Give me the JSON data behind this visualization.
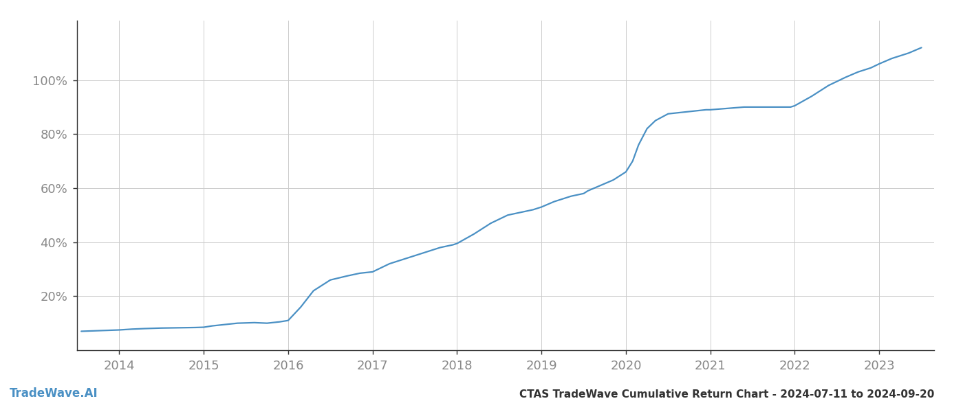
{
  "title": "CTAS TradeWave Cumulative Return Chart - 2024-07-11 to 2024-09-20",
  "watermark": "TradeWave.AI",
  "line_color": "#4a90c4",
  "background_color": "#ffffff",
  "grid_color": "#cccccc",
  "x_values": [
    2013.55,
    2014.0,
    2014.15,
    2014.3,
    2014.5,
    2014.7,
    2014.9,
    2015.0,
    2015.1,
    2015.25,
    2015.4,
    2015.6,
    2015.75,
    2015.9,
    2016.0,
    2016.15,
    2016.3,
    2016.5,
    2016.7,
    2016.85,
    2017.0,
    2017.2,
    2017.4,
    2017.6,
    2017.8,
    2017.95,
    2018.0,
    2018.2,
    2018.4,
    2018.6,
    2018.75,
    2018.9,
    2019.0,
    2019.15,
    2019.35,
    2019.5,
    2019.55,
    2019.7,
    2019.85,
    2020.0,
    2020.08,
    2020.15,
    2020.25,
    2020.35,
    2020.5,
    2020.65,
    2020.8,
    2020.95,
    2021.0,
    2021.2,
    2021.4,
    2021.6,
    2021.8,
    2021.95,
    2022.0,
    2022.2,
    2022.4,
    2022.6,
    2022.75,
    2022.9,
    2023.0,
    2023.15,
    2023.35,
    2023.5
  ],
  "y_values": [
    7,
    7.5,
    7.8,
    8,
    8.2,
    8.3,
    8.4,
    8.5,
    9,
    9.5,
    10,
    10.2,
    10,
    10.5,
    11,
    16,
    22,
    26,
    27.5,
    28.5,
    29,
    32,
    34,
    36,
    38,
    39,
    39.5,
    43,
    47,
    50,
    51,
    52,
    53,
    55,
    57,
    58,
    59,
    61,
    63,
    66,
    70,
    76,
    82,
    85,
    87.5,
    88,
    88.5,
    89,
    89,
    89.5,
    90,
    90,
    90,
    90,
    90.5,
    94,
    98,
    101,
    103,
    104.5,
    106,
    108,
    110,
    112
  ],
  "yticks": [
    20,
    40,
    60,
    80,
    100
  ],
  "ytick_labels": [
    "20%",
    "40%",
    "60%",
    "80%",
    "100%"
  ],
  "xticks": [
    2014,
    2015,
    2016,
    2017,
    2018,
    2019,
    2020,
    2021,
    2022,
    2023
  ],
  "xlim": [
    2013.5,
    2023.65
  ],
  "ylim": [
    0,
    122
  ],
  "tick_color": "#888888",
  "title_color": "#333333",
  "title_fontsize": 11,
  "watermark_fontsize": 12,
  "watermark_color": "#4a90c4",
  "line_width": 1.6,
  "spine_color": "#333333"
}
